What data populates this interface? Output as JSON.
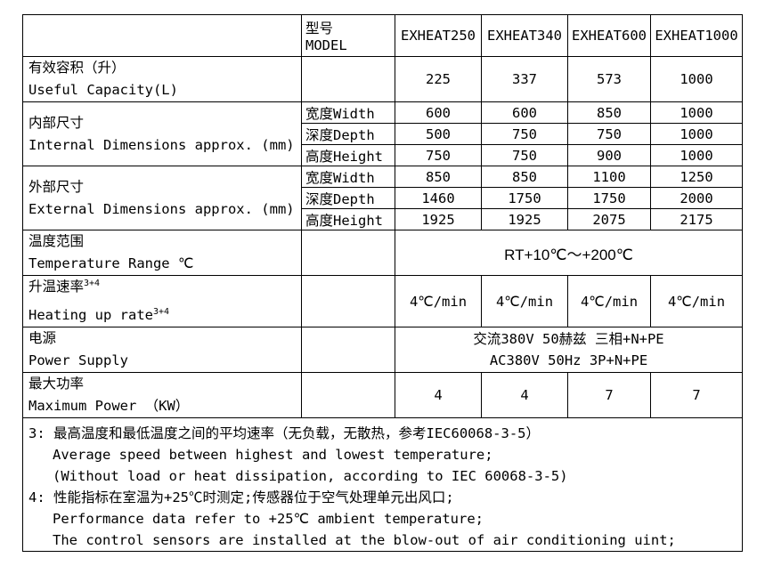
{
  "table": {
    "header": {
      "model_label_cn": "型号",
      "model_label_en": "MODEL",
      "models": [
        "EXHEAT250",
        "EXHEAT340",
        "EXHEAT600",
        "EXHEAT1000"
      ]
    },
    "capacity": {
      "label_cn": "有效容积（升）",
      "label_en": "Useful Capacity(L)",
      "values": [
        "225",
        "337",
        "573",
        "1000"
      ]
    },
    "internal": {
      "label_cn": "内部尺寸",
      "label_en": "Internal Dimensions approx. (mm)",
      "rows": [
        {
          "label": "宽度Width",
          "values": [
            "600",
            "600",
            "850",
            "1000"
          ]
        },
        {
          "label": "深度Depth",
          "values": [
            "500",
            "750",
            "750",
            "1000"
          ]
        },
        {
          "label": "高度Height",
          "values": [
            "750",
            "750",
            "900",
            "1000"
          ]
        }
      ]
    },
    "external": {
      "label_cn": "外部尺寸",
      "label_en": "External Dimensions approx. (mm)",
      "rows": [
        {
          "label": "宽度Width",
          "values": [
            "850",
            "850",
            "1100",
            "1250"
          ]
        },
        {
          "label": "深度Depth",
          "values": [
            "1460",
            "1750",
            "1750",
            "2000"
          ]
        },
        {
          "label": "高度Height",
          "values": [
            "1925",
            "1925",
            "2075",
            "2175"
          ]
        }
      ]
    },
    "temperature": {
      "label_cn": "温度范围",
      "label_en": "Temperature Range ℃",
      "value": "RT+10℃～+200℃"
    },
    "heating": {
      "label_cn": "升温速率",
      "label_en": "Heating up rate",
      "superscript": "3+4",
      "values": [
        "4℃/min",
        "4℃/min",
        "4℃/min",
        "4℃/min"
      ]
    },
    "power": {
      "label_cn": "电源",
      "label_en": "Power Supply",
      "value_line1": "交流380V 50赫兹 三相+N+PE",
      "value_line2": "AC380V 50Hz 3P+N+PE"
    },
    "max_power": {
      "label_cn": "最大功率",
      "label_en": "Maximum Power （KW）",
      "values": [
        "4",
        "4",
        "7",
        "7"
      ]
    },
    "notes": [
      "3: 最高温度和最低温度之间的平均速率（无负载，无散热，参考IEC60068-3-5）",
      "Average speed between highest and lowest temperature;",
      "(Without load or heat dissipation, according to IEC 60068-3-5)",
      "4: 性能指标在室温为+25℃时测定;传感器位于空气处理单元出风口;",
      "Performance data refer to +25℃ ambient temperature;",
      "The control sensors are installed at the blow-out of air conditioning uint;"
    ]
  },
  "colors": {
    "border": "#000000",
    "text": "#000000",
    "background": "#ffffff"
  }
}
